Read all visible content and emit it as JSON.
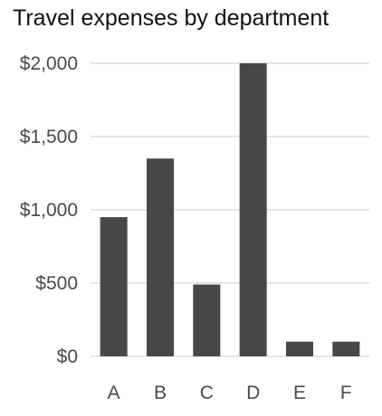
{
  "chart_data": {
    "type": "bar",
    "title": "Travel expenses by department",
    "categories": [
      "A",
      "B",
      "C",
      "D",
      "E",
      "F"
    ],
    "values": [
      950,
      1350,
      490,
      2000,
      100,
      100
    ],
    "ylim": [
      0,
      2000
    ],
    "yticks": [
      0,
      500,
      1000,
      1500,
      2000
    ],
    "ytick_labels": [
      "$0",
      "$500",
      "$1,000",
      "$1,500",
      "$2,000"
    ],
    "xlabel": "",
    "ylabel": "",
    "grid": true,
    "legend": "none",
    "colors": {
      "bar": "#474747",
      "grid": "#e6e6e6",
      "text": "#4a4a4a",
      "title": "#111111"
    }
  }
}
